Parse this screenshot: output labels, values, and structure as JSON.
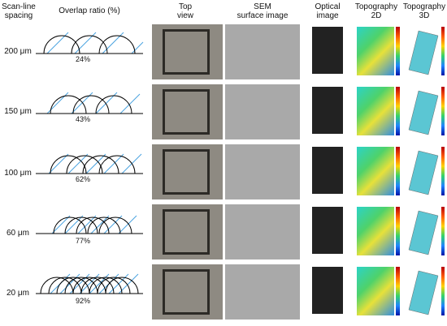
{
  "headers": {
    "spacing": "Scan-line\nspacing",
    "overlap": "Overlap ratio (%)",
    "top_view": "Top\nview",
    "sem": "SEM\nsurface image",
    "optical": "Optical\nimage",
    "topo2d": "Topography\n2D",
    "topo3d": "Topography\n3D"
  },
  "rows": [
    {
      "spacing": "200 μm",
      "overlap": "24%"
    },
    {
      "spacing": "150 μm",
      "overlap": "43%"
    },
    {
      "spacing": "100 μm",
      "overlap": "62%"
    },
    {
      "spacing": "60 μm",
      "overlap": "77%"
    },
    {
      "spacing": "20 μm",
      "overlap": "92%"
    }
  ],
  "colors": {
    "laser_line": "#4aa3df",
    "arc": "#000000"
  }
}
